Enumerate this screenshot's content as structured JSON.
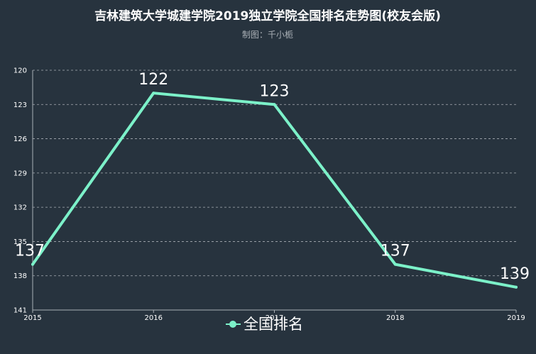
{
  "chart_data": {
    "type": "line",
    "title": "吉林建筑大学城建学院2019独立学院全国排名走势图(校友会版)",
    "subtitle": "制图：千小栀",
    "x": [
      "2015",
      "2016",
      "2017",
      "2018",
      "2019"
    ],
    "series": [
      {
        "name": "全国排名",
        "values": [
          137,
          122,
          123,
          137,
          139
        ]
      }
    ],
    "y_ticks": [
      "120",
      "123",
      "126",
      "129",
      "132",
      "135",
      "138",
      "141"
    ],
    "ylim": [
      120,
      141
    ],
    "y_inverted": true,
    "grid": true,
    "legend_position": "bottom-center",
    "colors": {
      "background": "#27333e",
      "line": "#7cf1c9",
      "grid": "#aab0b6",
      "axis": "#aab0b6",
      "text": "#ffffff"
    }
  }
}
